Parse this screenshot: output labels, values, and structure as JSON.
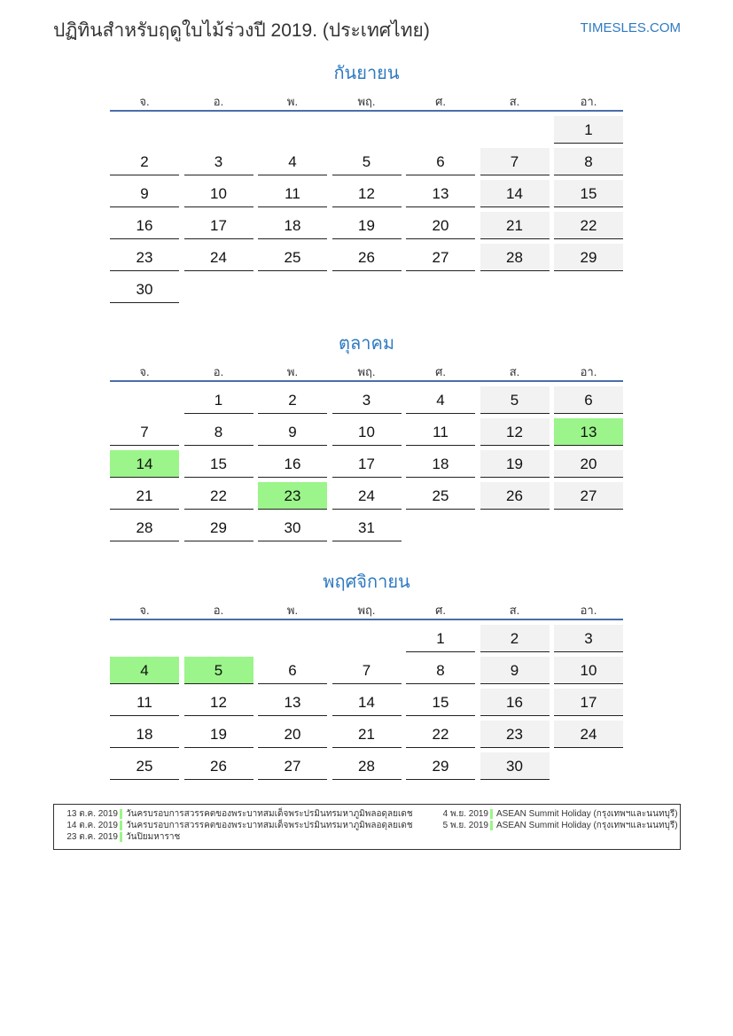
{
  "header": {
    "title": "ปฏิทินสำหรับฤดูใบไม้ร่วงปี 2019. (ประเทศไทย)",
    "site": "TIMESLES.COM"
  },
  "colors": {
    "accent": "#2f7ac0",
    "weekend": "#f2f2f2",
    "holiday": "#9bf58a",
    "rule": "#4a6ea9"
  },
  "weekdays": [
    "จ.",
    "อ.",
    "พ.",
    "พฤ.",
    "ศ.",
    "ส.",
    "อา."
  ],
  "months": [
    {
      "name": "กันยายน",
      "start_offset": 6,
      "days": 30,
      "holidays": []
    },
    {
      "name": "ตุลาคม",
      "start_offset": 1,
      "days": 31,
      "holidays": [
        13,
        14,
        23
      ]
    },
    {
      "name": "พฤศจิกายน",
      "start_offset": 4,
      "days": 30,
      "holidays": [
        4,
        5
      ]
    }
  ],
  "legend": {
    "left": [
      {
        "date": "13 ต.ค. 2019",
        "name": "วันครบรอบการสวรรคตของพระบาทสมเด็จพระปรมินทรมหาภูมิพลอดุลยเดช"
      },
      {
        "date": "14 ต.ค. 2019",
        "name": "วันครบรอบการสวรรคตของพระบาทสมเด็จพระปรมินทรมหาภูมิพลอดุลยเดช"
      },
      {
        "date": "23 ต.ค. 2019",
        "name": "วันปิยมหาราช"
      }
    ],
    "right": [
      {
        "date": "4 พ.ย. 2019",
        "name": "ASEAN Summit Holiday (กรุงเทพฯและนนทบุรี)"
      },
      {
        "date": "5 พ.ย. 2019",
        "name": "ASEAN Summit Holiday (กรุงเทพฯและนนทบุรี)"
      }
    ]
  }
}
